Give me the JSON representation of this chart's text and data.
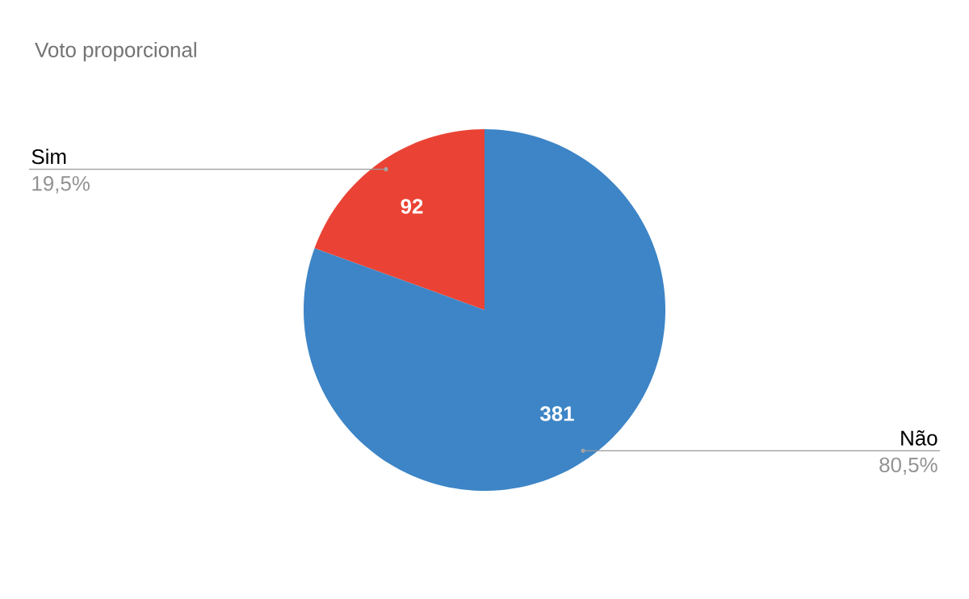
{
  "chart_data": {
    "type": "pie",
    "title": "Voto proporcional",
    "categories": [
      "Sim",
      "Não"
    ],
    "values": [
      92,
      381
    ],
    "colors": [
      "#ea4335",
      "#3d85c6"
    ],
    "data_labels": true,
    "annotations": [
      "19,5%",
      "80,5%"
    ]
  }
}
